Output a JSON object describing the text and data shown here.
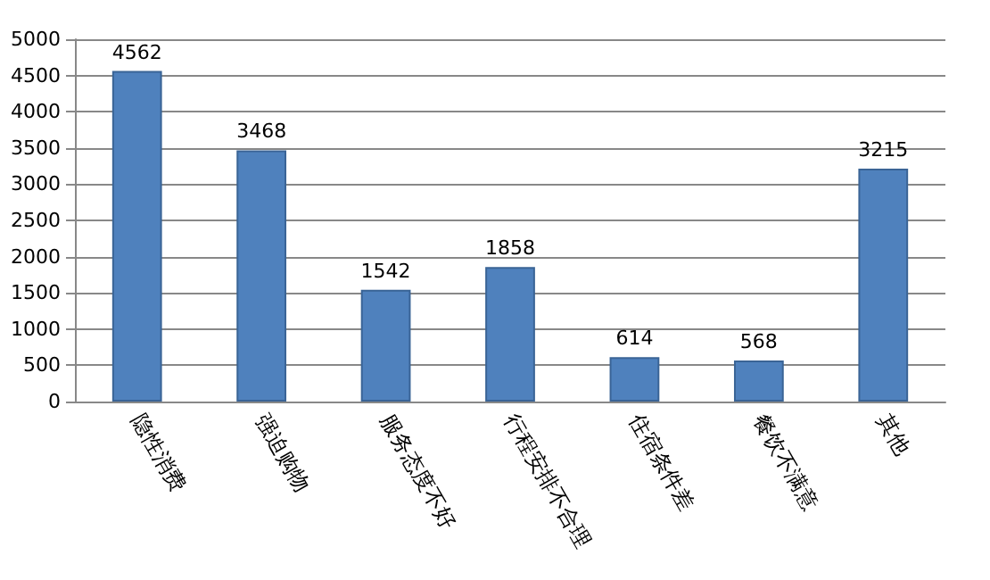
{
  "chart_data": {
    "type": "bar",
    "categories": [
      "隐性消费",
      "强迫购物",
      "服务态度不好",
      "行程安排不合理",
      "住宿条件差",
      "餐饮不满意",
      "其他"
    ],
    "values": [
      4562,
      3468,
      1542,
      1858,
      614,
      568,
      3215
    ],
    "color": "#4f81bd",
    "ylim": [
      0,
      5000
    ],
    "yticks": [
      0,
      500,
      1000,
      1500,
      2000,
      2500,
      3000,
      3500,
      4000,
      4500,
      5000
    ],
    "grid": "y",
    "data_labels": true
  }
}
